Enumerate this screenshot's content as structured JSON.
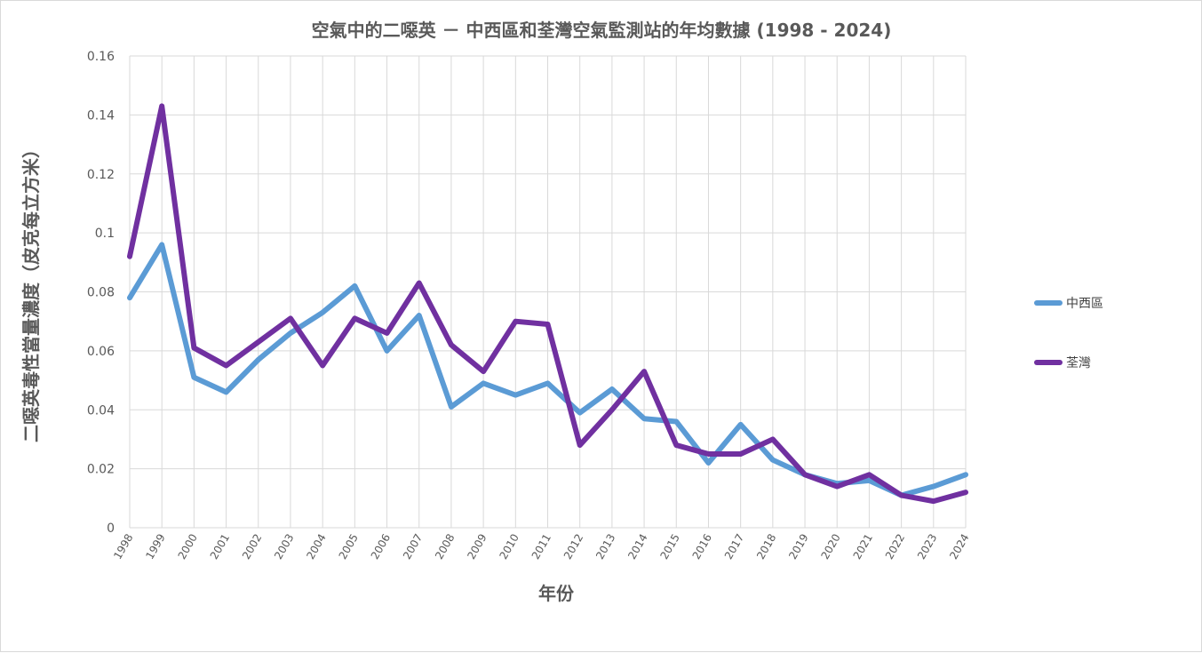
{
  "chart_data": {
    "type": "line",
    "title": "空氣中的二噁英 － 中西區和荃灣空氣監測站的年均數據 (1998 - 2024)",
    "xlabel": "年份",
    "ylabel": "二噁英毒性當量濃度（皮克每立方米）",
    "ylim": [
      0,
      0.16
    ],
    "yticks": [
      "0",
      "0.02",
      "0.04",
      "0.06",
      "0.08",
      "0.1",
      "0.12",
      "0.14",
      "0.16"
    ],
    "ytick_values": [
      0,
      0.02,
      0.04,
      0.06,
      0.08,
      0.1,
      0.12,
      0.14,
      0.16
    ],
    "grid": true,
    "legend": "right",
    "x": [
      "1998",
      "1999",
      "2000",
      "2001",
      "2002",
      "2003",
      "2004",
      "2005",
      "2006",
      "2007",
      "2008",
      "2009",
      "2010",
      "2011",
      "2012",
      "2013",
      "2014",
      "2015",
      "2016",
      "2017",
      "2018",
      "2019",
      "2020",
      "2021",
      "2022",
      "2023",
      "2024"
    ],
    "series": [
      {
        "name": "中西區",
        "color": "#5b9bd5",
        "values": [
          0.078,
          0.096,
          0.051,
          0.046,
          0.057,
          0.066,
          0.073,
          0.082,
          0.06,
          0.072,
          0.041,
          0.049,
          0.045,
          0.049,
          0.039,
          0.047,
          0.037,
          0.036,
          0.022,
          0.035,
          0.023,
          0.018,
          0.015,
          0.016,
          0.011,
          0.014,
          0.018
        ]
      },
      {
        "name": "荃灣",
        "color": "#7030a0",
        "values": [
          0.092,
          0.143,
          0.061,
          0.055,
          0.063,
          0.071,
          0.055,
          0.071,
          0.066,
          0.083,
          0.062,
          0.053,
          0.07,
          0.069,
          0.028,
          0.04,
          0.053,
          0.028,
          0.025,
          0.025,
          0.03,
          0.018,
          0.014,
          0.018,
          0.011,
          0.009,
          0.012
        ]
      }
    ]
  }
}
